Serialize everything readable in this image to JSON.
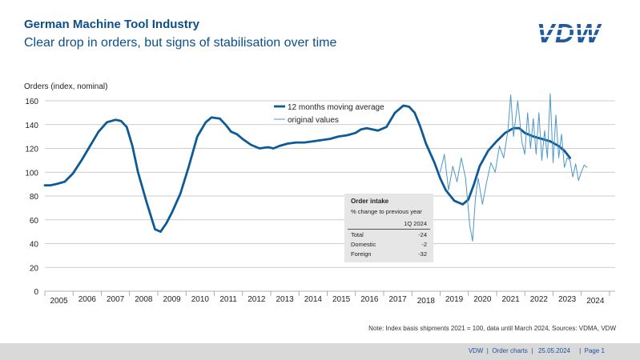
{
  "header": {
    "title": "German Machine Tool Industry",
    "subtitle": "Clear drop in orders, but signs of stabilisation over time",
    "logo_text": "VDW"
  },
  "colors": {
    "brand": "#0a4f8c",
    "ma_line": "#0d5a96",
    "orig_line": "#4d97c9",
    "grid": "#bdbdbd",
    "footer_bg": "#d9d9d9"
  },
  "chart_data": {
    "type": "line",
    "title": "German Machine Tool Industry",
    "ylabel": "Orders (index, nominal)",
    "xlabel": "",
    "ylim": [
      0,
      160
    ],
    "yticks": [
      0,
      20,
      40,
      60,
      80,
      100,
      120,
      140,
      160
    ],
    "xlim": [
      2005,
      2025.2
    ],
    "x_tick_labels": [
      "2005",
      "2006",
      "2007",
      "2008",
      "2009",
      "2010",
      "2011",
      "2012",
      "2013",
      "2014",
      "2015",
      "2016",
      "2017",
      "2018",
      "2019",
      "2020",
      "2021",
      "2022",
      "2023",
      "2024"
    ],
    "grid": true,
    "legend": {
      "position": "top-center",
      "entries": [
        "12 months moving average",
        "original values"
      ]
    },
    "series": [
      {
        "name": "12 months moving average",
        "style": "thick",
        "x": [
          2005.0,
          2005.2,
          2005.4,
          2005.7,
          2006.0,
          2006.3,
          2006.6,
          2006.9,
          2007.2,
          2007.5,
          2007.7,
          2007.9,
          2008.1,
          2008.3,
          2008.6,
          2008.9,
          2009.1,
          2009.3,
          2009.5,
          2009.8,
          2010.1,
          2010.4,
          2010.7,
          2010.9,
          2011.2,
          2011.4,
          2011.6,
          2011.8,
          2012.0,
          2012.3,
          2012.6,
          2012.9,
          2013.1,
          2013.3,
          2013.6,
          2013.9,
          2014.2,
          2014.5,
          2014.8,
          2015.1,
          2015.4,
          2015.7,
          2016.0,
          2016.2,
          2016.4,
          2016.6,
          2016.8,
          2017.1,
          2017.4,
          2017.7,
          2017.9,
          2018.1,
          2018.3,
          2018.5,
          2018.8,
          2019.0,
          2019.2,
          2019.5,
          2019.8,
          2020.0,
          2020.2,
          2020.4,
          2020.7,
          2021.0,
          2021.3,
          2021.6,
          2021.8,
          2022.0,
          2022.3,
          2022.6,
          2022.9,
          2023.2,
          2023.4,
          2023.6
        ],
        "values": [
          89,
          89,
          90,
          92,
          99,
          110,
          122,
          134,
          142,
          144,
          143,
          138,
          122,
          100,
          75,
          52,
          50,
          57,
          66,
          82,
          105,
          130,
          142,
          146,
          145,
          140,
          134,
          132,
          128,
          123,
          120,
          121,
          120,
          122,
          124,
          125,
          125,
          126,
          127,
          128,
          130,
          131,
          133,
          136,
          137,
          136,
          135,
          138,
          150,
          156,
          155,
          150,
          138,
          124,
          108,
          95,
          85,
          76,
          73,
          77,
          90,
          105,
          118,
          126,
          133,
          137,
          137,
          133,
          130,
          128,
          126,
          122,
          118,
          112
        ]
      },
      {
        "name": "original values",
        "style": "thin",
        "x": [
          2019.0,
          2019.15,
          2019.3,
          2019.45,
          2019.6,
          2019.75,
          2019.9,
          2020.05,
          2020.15,
          2020.25,
          2020.35,
          2020.5,
          2020.65,
          2020.8,
          2020.95,
          2021.1,
          2021.25,
          2021.4,
          2021.5,
          2021.6,
          2021.75,
          2021.9,
          2022.0,
          2022.1,
          2022.2,
          2022.3,
          2022.4,
          2022.5,
          2022.6,
          2022.7,
          2022.8,
          2022.9,
          2023.0,
          2023.1,
          2023.2,
          2023.3,
          2023.4,
          2023.5,
          2023.6,
          2023.7,
          2023.8,
          2023.9,
          2024.0,
          2024.1,
          2024.2
        ],
        "values": [
          100,
          115,
          85,
          105,
          92,
          112,
          95,
          55,
          42,
          78,
          95,
          73,
          92,
          108,
          100,
          122,
          112,
          135,
          165,
          130,
          160,
          125,
          115,
          150,
          120,
          145,
          115,
          150,
          110,
          135,
          112,
          166,
          108,
          148,
          112,
          132,
          104,
          112,
          110,
          96,
          107,
          93,
          100,
          106,
          104
        ]
      }
    ]
  },
  "order_intake_box": {
    "title": "Order intake",
    "subtitle": "% change to previous year",
    "period": "1Q 2024",
    "rows": [
      {
        "label": "Total",
        "value": "-24"
      },
      {
        "label": "Domestic",
        "value": "-2"
      },
      {
        "label": "Foreign",
        "value": "-32"
      }
    ]
  },
  "note": "Note: Index basis shipments 2021 = 100, data until March 2024, Sources: VDMA,  VDW",
  "footer": "VDW  |  Order charts  |   25.05.2024     |  Page 1"
}
